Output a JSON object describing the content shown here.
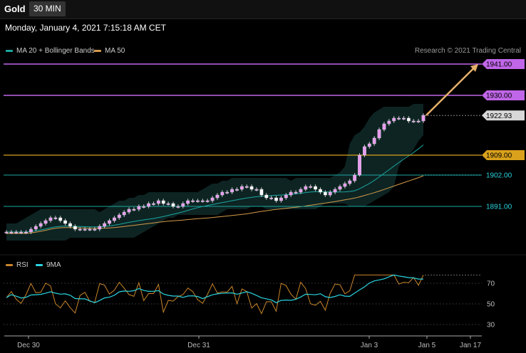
{
  "header": {
    "symbol": "Gold",
    "timeframe": "30 MIN"
  },
  "datetime": "Monday, January 4, 2021 7:15:18 AM CET",
  "legend": {
    "ma20": {
      "label": "MA 20 + Bollinger Bands",
      "color": "#1aa7a0"
    },
    "ma50": {
      "label": "MA 50",
      "color": "#d59a4a"
    }
  },
  "research": "Research © 2021 Trading Central",
  "rsi_legend": {
    "rsi": {
      "label": "RSI",
      "color": "#c9852a"
    },
    "ma9": {
      "label": "9MA",
      "color": "#2ad4e0"
    }
  },
  "colors": {
    "resistance": "#c066e8",
    "key_level": "#d9a11c",
    "support": "#1aa7a0",
    "arrow": "#e6b06a"
  },
  "chart_data": [
    {
      "type": "candlestick",
      "price_axis_range": [
        1882,
        1945
      ],
      "levels": [
        {
          "label": "1941.00",
          "value": 1941.0,
          "kind": "resistance"
        },
        {
          "label": "1930.00",
          "value": 1930.0,
          "kind": "resistance"
        },
        {
          "label": "1922.93",
          "value": 1922.93,
          "kind": "last_price"
        },
        {
          "label": "1909.00",
          "value": 1909.0,
          "kind": "key_level"
        },
        {
          "label": "1902.00",
          "value": 1902.0,
          "kind": "support"
        },
        {
          "label": "1891.00",
          "value": 1891.0,
          "kind": "support"
        }
      ],
      "x_tick_labels": [
        "Dec 30",
        "Dec 31",
        "Jan 3",
        "Jan 5",
        "Jan 17"
      ],
      "close_series": [
        1882,
        1882,
        1882,
        1882,
        1882,
        1883,
        1884,
        1885,
        1886,
        1887,
        1887,
        1886,
        1885,
        1884,
        1883,
        1883,
        1883,
        1883,
        1883,
        1884,
        1885,
        1886,
        1887,
        1888,
        1889,
        1890,
        1890,
        1891,
        1891,
        1892,
        1892,
        1893,
        1892,
        1892,
        1891,
        1891,
        1892,
        1893,
        1893,
        1893,
        1893,
        1893,
        1894,
        1895,
        1896,
        1896,
        1897,
        1897,
        1898,
        1898,
        1897,
        1897,
        1895,
        1894,
        1894,
        1893,
        1894,
        1895,
        1896,
        1896,
        1897,
        1898,
        1898,
        1897,
        1896,
        1895,
        1896,
        1897,
        1898,
        1899,
        1900,
        1902,
        1909,
        1912,
        1913,
        1915,
        1918,
        1920,
        1921,
        1922,
        1922,
        1922,
        1921,
        1921,
        1921,
        1923
      ],
      "arrow_target": 1941.0
    },
    {
      "type": "line",
      "name": "RSI",
      "y_ticks": [
        30,
        50,
        70
      ],
      "series": [
        "RSI",
        "9MA"
      ]
    }
  ]
}
